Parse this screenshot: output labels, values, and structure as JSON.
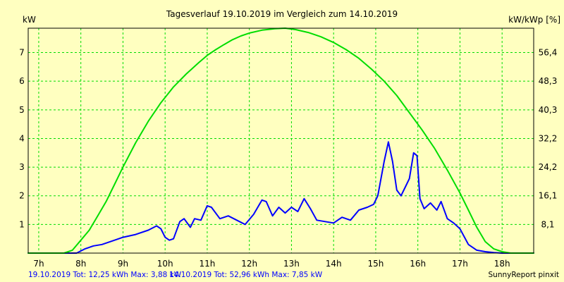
{
  "chart_data": {
    "type": "line",
    "title": "Tagesverlauf 19.10.2019 im Vergleich zum 14.10.2019",
    "ylabel_left": "kW",
    "ylabel_right": "kW/kWp [%]",
    "x_ticks": [
      "7h",
      "8h",
      "9h",
      "10h",
      "11h",
      "12h",
      "13h",
      "14h",
      "15h",
      "16h",
      "17h",
      "18h"
    ],
    "y_ticks_left": [
      "1",
      "2",
      "3",
      "4",
      "5",
      "6",
      "7"
    ],
    "y_ticks_right": [
      "8,1",
      "16,1",
      "24,2",
      "32,2",
      "40,3",
      "48,3",
      "56,4"
    ],
    "xlim": [
      6.75,
      18.75
    ],
    "ylim": [
      0,
      7.85
    ],
    "grid": true,
    "series": [
      {
        "name": "19.10.2019",
        "color": "#0000ff",
        "x": [
          6.75,
          7.9,
          8.1,
          8.3,
          8.5,
          8.8,
          9.0,
          9.3,
          9.6,
          9.8,
          9.9,
          10.0,
          10.1,
          10.2,
          10.35,
          10.45,
          10.6,
          10.7,
          10.85,
          11.0,
          11.1,
          11.3,
          11.5,
          11.7,
          11.9,
          12.1,
          12.3,
          12.4,
          12.55,
          12.7,
          12.85,
          13.0,
          13.15,
          13.3,
          13.45,
          13.6,
          13.8,
          14.0,
          14.2,
          14.4,
          14.6,
          14.8,
          14.95,
          15.05,
          15.2,
          15.3,
          15.4,
          15.5,
          15.6,
          15.7,
          15.8,
          15.9,
          15.98,
          16.05,
          16.15,
          16.3,
          16.45,
          16.55,
          16.7,
          16.85,
          17.0,
          17.2,
          17.4,
          17.6,
          17.8,
          18.0,
          18.2,
          18.75
        ],
        "y": [
          0,
          0,
          0.15,
          0.25,
          0.3,
          0.45,
          0.55,
          0.65,
          0.8,
          0.95,
          0.85,
          0.55,
          0.45,
          0.5,
          1.1,
          1.2,
          0.9,
          1.2,
          1.15,
          1.65,
          1.6,
          1.2,
          1.3,
          1.15,
          1.0,
          1.35,
          1.85,
          1.8,
          1.3,
          1.6,
          1.4,
          1.6,
          1.45,
          1.9,
          1.55,
          1.15,
          1.1,
          1.05,
          1.25,
          1.15,
          1.5,
          1.6,
          1.7,
          2.0,
          3.2,
          3.88,
          3.2,
          2.2,
          2.0,
          2.3,
          2.6,
          3.5,
          3.4,
          1.9,
          1.55,
          1.75,
          1.5,
          1.8,
          1.2,
          1.05,
          0.85,
          0.3,
          0.1,
          0.05,
          0.02,
          0,
          0,
          0
        ]
      },
      {
        "name": "14.10.2019",
        "color": "#00dd00",
        "x": [
          6.75,
          7.6,
          7.8,
          8.0,
          8.2,
          8.4,
          8.6,
          8.8,
          9.0,
          9.3,
          9.6,
          9.9,
          10.2,
          10.5,
          10.8,
          11.0,
          11.2,
          11.4,
          11.6,
          11.8,
          12.0,
          12.3,
          12.6,
          12.85,
          13.1,
          13.4,
          13.7,
          14.0,
          14.3,
          14.6,
          14.9,
          15.2,
          15.5,
          15.8,
          16.1,
          16.4,
          16.7,
          17.0,
          17.2,
          17.4,
          17.6,
          17.8,
          18.0,
          18.2,
          18.75
        ],
        "y": [
          0,
          0,
          0.1,
          0.45,
          0.8,
          1.3,
          1.8,
          2.4,
          3.0,
          3.85,
          4.6,
          5.25,
          5.8,
          6.25,
          6.65,
          6.9,
          7.1,
          7.28,
          7.45,
          7.58,
          7.68,
          7.78,
          7.83,
          7.85,
          7.8,
          7.7,
          7.55,
          7.35,
          7.1,
          6.8,
          6.42,
          6.0,
          5.5,
          4.9,
          4.3,
          3.65,
          2.9,
          2.1,
          1.5,
          0.9,
          0.4,
          0.15,
          0.05,
          0,
          0
        ]
      }
    ]
  },
  "footer": {
    "left_1": "19.10.2019 Tot: 12,25 kWh Max: 3,88 kW",
    "left_2": "14.10.2019 Tot: 52,96 kWh Max: 7,85 kW",
    "right": "SunnyReport pinxit"
  }
}
